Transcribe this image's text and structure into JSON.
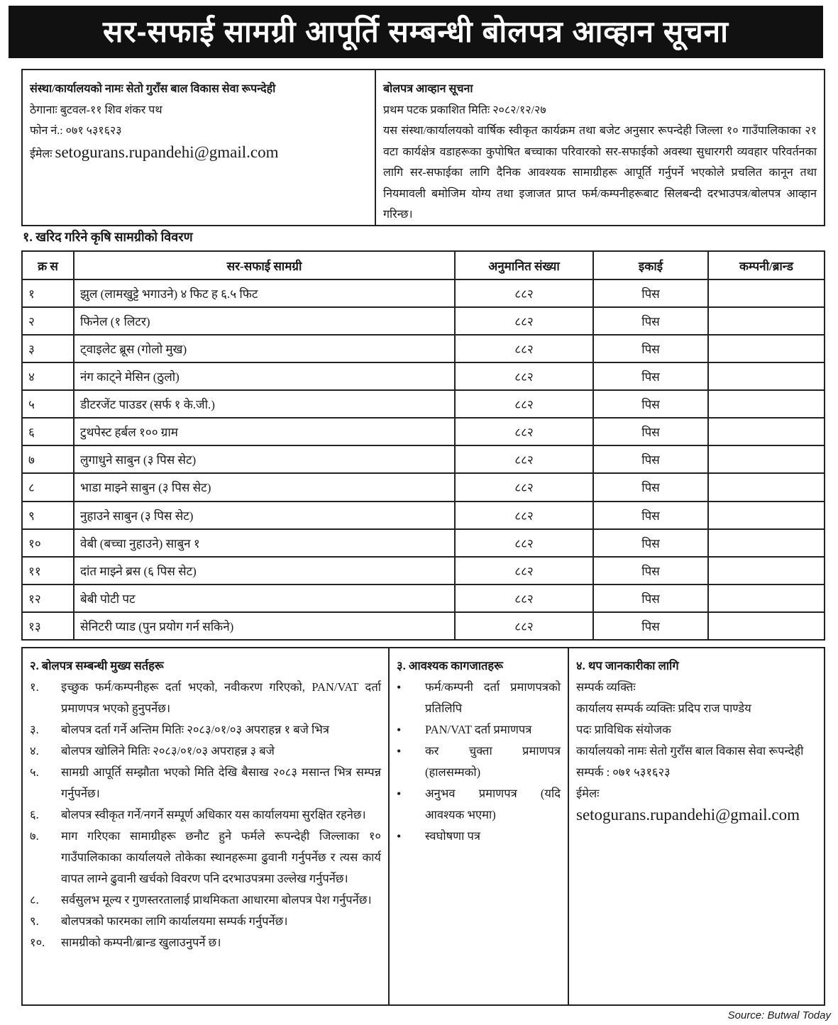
{
  "title": "सर-सफाई सामग्री आपूर्ति सम्बन्धी बोलपत्र आव्हान सूचना",
  "org_info": {
    "name": "संस्था/कार्यालयको नामः सेतो गुराँस बाल विकास सेवा रूपन्देही",
    "address": "ठेगानाः बुटवल-११ शिव शंकर पथ",
    "phone": "फोन नं.: ०७१ ५३१६२३",
    "email_label": "ईमेलः",
    "email": "setogurans.rupandehi@gmail.com"
  },
  "notice": {
    "heading": "बोलपत्र आव्हान सूचना",
    "published": "प्रथम पटक प्रकाशित मितिः २०८२/१२/२७",
    "body": "यस संस्था/कार्यालयको वार्षिक स्वीकृत कार्यक्रम तथा बजेट अनुसार रूपन्देही जिल्ला १० गाउँपालिकाका २१ वटा कार्यक्षेत्र वडाहरूका कुपोषित बच्चाका परिवारको सर-सफाईको अवस्था सुधारगरी व्यवहार परिवर्तनका लागि सर-सफाईका लागि दैनिक आवश्यक सामाग्रीहरू आपूर्ति गर्नुपर्ने भएकोले प्रचलित कानून तथा नियमावली बमोजिम योग्य तथा इजाजत प्राप्त फर्म/कम्पनीहरूबाट सिलबन्दी दरभाउपत्र/बोलपत्र आव्हान गरिन्छ।"
  },
  "section1_heading": "१. खरिद गरिने कृषि सामग्रीको विवरण",
  "table": {
    "headers": [
      "क्र स",
      "सर-सफाई सामग्री",
      "अनुमानित संख्या",
      "इकाई",
      "कम्पनी/ब्रान्ड"
    ],
    "rows": [
      {
        "sn": "१",
        "item": "झुल (लामखुट्टे भगाउने) ४ फिट ह ६.५ फिट",
        "qty": "८८२",
        "unit": "पिस",
        "brand": ""
      },
      {
        "sn": "२",
        "item": "फिनेल (१ लिटर)",
        "qty": "८८२",
        "unit": "पिस",
        "brand": ""
      },
      {
        "sn": "३",
        "item": "ट्वाइलेट ब्रूस (गोलो मुख)",
        "qty": "८८२",
        "unit": "पिस",
        "brand": ""
      },
      {
        "sn": "४",
        "item": "नंग काट्ने मेसिन (ठुलो)",
        "qty": "८८२",
        "unit": "पिस",
        "brand": ""
      },
      {
        "sn": "५",
        "item": "डीटरजेंट पाउडर (सर्फ १ के.जी.)",
        "qty": "८८२",
        "unit": "पिस",
        "brand": ""
      },
      {
        "sn": "६",
        "item": "टुथपेस्ट हर्बल १०० ग्राम",
        "qty": "८८२",
        "unit": "पिस",
        "brand": ""
      },
      {
        "sn": "७",
        "item": "लुगाधुने साबुन (३ पिस सेट)",
        "qty": "८८२",
        "unit": "पिस",
        "brand": ""
      },
      {
        "sn": "८",
        "item": "भाडा माझ्ने साबुन (३ पिस सेट)",
        "qty": "८८२",
        "unit": "पिस",
        "brand": ""
      },
      {
        "sn": "९",
        "item": "नुहाउने साबुन (३ पिस सेट)",
        "qty": "८८२",
        "unit": "पिस",
        "brand": ""
      },
      {
        "sn": "१०",
        "item": "वेबी (बच्चा नुहाउने) साबुन १",
        "qty": "८८२",
        "unit": "पिस",
        "brand": ""
      },
      {
        "sn": "११",
        "item": "दांत माझ्ने ब्रस (६ पिस सेट)",
        "qty": "८८२",
        "unit": "पिस",
        "brand": ""
      },
      {
        "sn": "१२",
        "item": "बेबी पोटी पट",
        "qty": "८८२",
        "unit": "पिस",
        "brand": ""
      },
      {
        "sn": "१३",
        "item": "सेनिटरी प्याड (पुन प्रयोग गर्न सकिने)",
        "qty": "८८२",
        "unit": "पिस",
        "brand": ""
      }
    ]
  },
  "conditions": {
    "heading": "२. बोलपत्र सम्बन्धी मुख्य सर्तहरू",
    "items": [
      {
        "n": "१.",
        "t": "इच्छुक फर्म/कम्पनीहरू दर्ता भएको, नवीकरण गरिएको, PAN/VAT दर्ता प्रमाणपत्र भएको हुनुपर्नेछ।"
      },
      {
        "n": "३.",
        "t": "बोलपत्र दर्ता गर्ने अन्तिम मितिः २०८३/०१/०३ अपराहन्न १ बजे भित्र"
      },
      {
        "n": "४.",
        "t": "बोलपत्र खोलिने मितिः २०८३/०१/०३ अपराहन्न ३ बजे"
      },
      {
        "n": "५.",
        "t": "सामग्री आपूर्ति सम्झौता भएको मिति देखि बैसाख २०८३ मसान्त भित्र सम्पन्न गर्नुपर्नेछ।"
      },
      {
        "n": "६.",
        "t": "बोलपत्र स्वीकृत गर्ने/नगर्ने सम्पूर्ण अधिकार यस कार्यालयमा सुरक्षित रहनेछ।"
      },
      {
        "n": "७.",
        "t": "माग गरिएका सामाग्रीहरू छनौट हुने फर्मले रूपन्देही जिल्लाका १० गाउँपालिकाका कार्यालयले तोकेका स्थानहरूमा ढुवानी गर्नुपर्नेछ र त्यस कार्य वापत लाग्ने ढुवानी खर्चको विवरण पनि दरभाउपत्रमा उल्लेख गर्नुपर्नेछ।"
      },
      {
        "n": "८.",
        "t": "सर्वसुलभ मूल्य र गुणस्तरतालाई प्राथमिकता आधारमा बोलपत्र पेश गर्नुपर्नेछ।"
      },
      {
        "n": "९.",
        "t": "बोलपत्रको फारमका लागि कार्यालयमा सम्पर्क गर्नुपर्नेछ।"
      },
      {
        "n": "१०.",
        "t": "सामग्रीको कम्पनी/ब्रान्ड खुलाउनुपर्ने छ।"
      }
    ]
  },
  "documents": {
    "heading": "३. आवश्यक कागजातहरू",
    "items": [
      "फर्म/कम्पनी दर्ता प्रमाणपत्रको प्रतिलिपि",
      "PAN/VAT दर्ता प्रमाणपत्र",
      "कर चुक्ता प्रमाणपत्र (हालसम्मको)",
      "अनुभव प्रमाणपत्र (यदि आवश्यक भएमा)",
      "स्वघोषणा पत्र"
    ]
  },
  "more_info": {
    "heading": "४. थप जानकारीका लागि",
    "contact_label": "सम्पर्क व्यक्तिः",
    "contact_person": "कार्यालय सम्पर्क व्यक्तिः प्रदिप राज पाण्डेय",
    "post": "पदः प्राविधिक संयोजक",
    "office": "कार्यालयको नामः सेतो गुराँस बाल विकास सेवा रूपन्देही",
    "phone": "सम्पर्क : ०७१ ५३१६२३",
    "email_label": "ईमेलः",
    "email": "setogurans.rupandehi@gmail.com"
  },
  "source": "Source: Butwal Today"
}
